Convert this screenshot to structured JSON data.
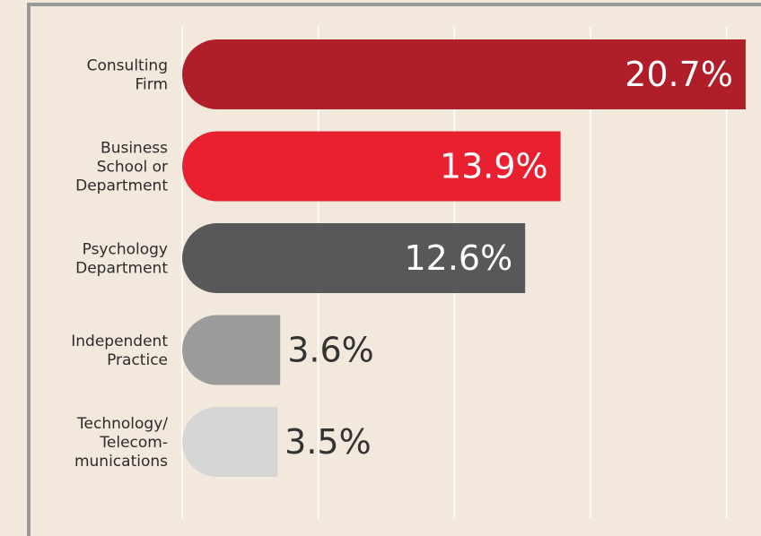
{
  "chart_data": {
    "type": "barh",
    "categories": [
      "Consulting\nFirm",
      "Business\nSchool or\nDepartment",
      "Psychology\nDepartment",
      "Independent\nPractice",
      "Technology/\nTelecom-\nmunications"
    ],
    "values": [
      20.7,
      13.9,
      12.6,
      3.6,
      3.5
    ],
    "value_labels": [
      "20.7%",
      "13.9%",
      "12.6%",
      "3.6%",
      "3.5%"
    ],
    "colors": [
      "#b01e2a",
      "#e8202f",
      "#58585a",
      "#9b9b9b",
      "#d6d6d6"
    ],
    "xlim": [
      0,
      21
    ],
    "xticks": [
      0,
      5,
      10,
      15,
      20
    ],
    "grid": true
  }
}
